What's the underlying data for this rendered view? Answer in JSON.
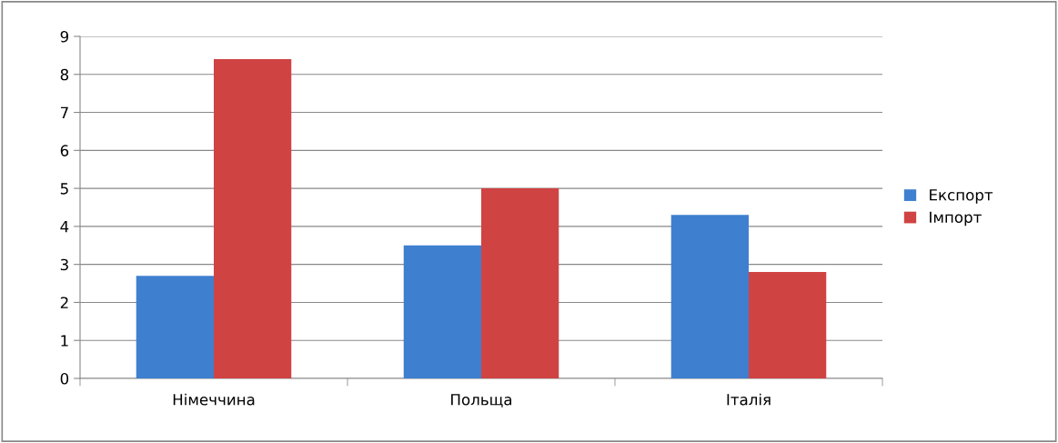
{
  "chart_data": {
    "type": "bar",
    "categories": [
      "Німеччина",
      "Польща",
      "Італія"
    ],
    "series": [
      {
        "name": "Експорт",
        "color": "#3f7fcf",
        "values": [
          2.7,
          3.5,
          4.3
        ]
      },
      {
        "name": "Імпорт",
        "color": "#d04343",
        "values": [
          8.4,
          5.0,
          2.8
        ]
      }
    ],
    "ylim": [
      0,
      9
    ],
    "yticks": [
      0,
      1,
      2,
      3,
      4,
      5,
      6,
      7,
      8,
      9
    ],
    "grid": "y",
    "legend": "right"
  }
}
